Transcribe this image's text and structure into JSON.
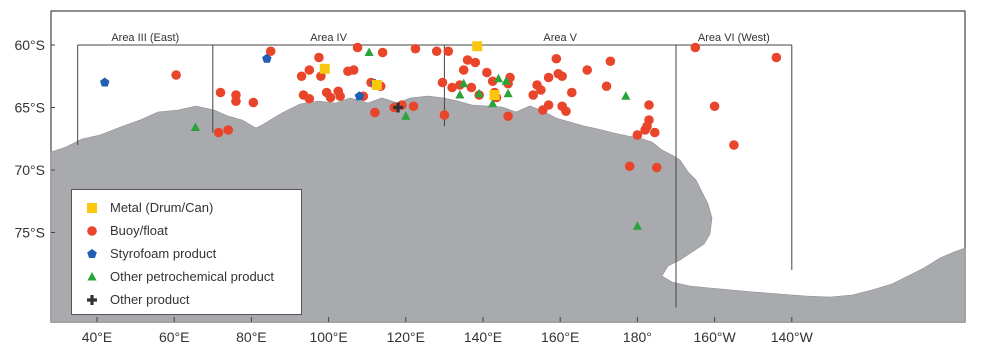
{
  "map": {
    "lat_labels": [
      "60°S",
      "65°S",
      "70°S",
      "75°S"
    ],
    "lon_labels": [
      "40°E",
      "60°E",
      "80°E",
      "100°E",
      "120°E",
      "140°E",
      "160°E",
      "180°",
      "160°W",
      "140°W"
    ],
    "areas": [
      {
        "label": "Area III (East)"
      },
      {
        "label": "Area IV"
      },
      {
        "label": "Area V"
      },
      {
        "label": "Area VI (West)"
      }
    ],
    "colors": {
      "land": "#a9aaae",
      "metal": "#f9c80e",
      "buoy": "#e8452b",
      "styrofoam": "#1f5fb4",
      "petrochemical": "#2aa33b",
      "other": "#333333"
    }
  },
  "legend": {
    "items": [
      {
        "label": "Metal (Drum/Can)",
        "symbol": "square",
        "color": "#f9c80e"
      },
      {
        "label": "Buoy/float",
        "symbol": "circle",
        "color": "#e8452b"
      },
      {
        "label": "Styrofoam product",
        "symbol": "pentagon",
        "color": "#1f5fb4"
      },
      {
        "label": "Other petrochemical product",
        "symbol": "triangle",
        "color": "#2aa33b"
      },
      {
        "label": "Other product",
        "symbol": "cross",
        "color": "#333333"
      }
    ]
  },
  "points": {
    "buoy": [
      [
        60.5,
        -62.4
      ],
      [
        71.5,
        -67.0
      ],
      [
        72,
        -63.8
      ],
      [
        74,
        -66.8
      ],
      [
        76,
        -64.0
      ],
      [
        76,
        -64.5
      ],
      [
        80.5,
        -64.6
      ],
      [
        85,
        -60.5
      ],
      [
        93,
        -62.5
      ],
      [
        93.5,
        -64.0
      ],
      [
        95,
        -62.0
      ],
      [
        95,
        -64.3
      ],
      [
        97.5,
        -61.0
      ],
      [
        98,
        -62.5
      ],
      [
        99.5,
        -63.8
      ],
      [
        100.5,
        -64.2
      ],
      [
        102.5,
        -63.7
      ],
      [
        103,
        -64.1
      ],
      [
        105,
        -62.1
      ],
      [
        106.5,
        -62.0
      ],
      [
        107.5,
        -60.2
      ],
      [
        109,
        -64.1
      ],
      [
        111,
        -63.0
      ],
      [
        112,
        -65.4
      ],
      [
        113.5,
        -63.3
      ],
      [
        114,
        -60.6
      ],
      [
        117,
        -65.0
      ],
      [
        119,
        -64.8
      ],
      [
        122.5,
        -60.3
      ],
      [
        122,
        -64.9
      ],
      [
        128,
        -60.5
      ],
      [
        129.5,
        -63.0
      ],
      [
        130,
        -65.6
      ],
      [
        131,
        -60.5
      ],
      [
        132,
        -63.4
      ],
      [
        134,
        -63.2
      ],
      [
        135,
        -62.0
      ],
      [
        136,
        -61.2
      ],
      [
        137,
        -63.4
      ],
      [
        138,
        -61.4
      ],
      [
        139,
        -64.0
      ],
      [
        141,
        -62.2
      ],
      [
        142.5,
        -62.9
      ],
      [
        143,
        -63.8
      ],
      [
        143.5,
        -64.2
      ],
      [
        146.5,
        -63.1
      ],
      [
        147,
        -62.6
      ],
      [
        146.5,
        -65.7
      ],
      [
        153,
        -64.0
      ],
      [
        154,
        -63.2
      ],
      [
        155,
        -63.6
      ],
      [
        155.5,
        -65.2
      ],
      [
        157,
        -62.6
      ],
      [
        157,
        -64.8
      ],
      [
        159,
        -61.1
      ],
      [
        159.5,
        -62.3
      ],
      [
        160.5,
        -62.5
      ],
      [
        160.5,
        -64.9
      ],
      [
        161.5,
        -65.3
      ],
      [
        163,
        -63.8
      ],
      [
        167,
        -62.0
      ],
      [
        172,
        -63.3
      ],
      [
        173,
        -61.3
      ],
      [
        178,
        -69.7
      ],
      [
        180,
        -67.2
      ],
      [
        182,
        -66.8
      ],
      [
        182.5,
        -66.5
      ],
      [
        183,
        -66.0
      ],
      [
        183,
        -64.8
      ],
      [
        184.5,
        -67.0
      ],
      [
        185,
        -69.8
      ],
      [
        195,
        -60.2
      ],
      [
        200,
        -64.9
      ],
      [
        205,
        -68.0
      ],
      [
        216,
        -61.0
      ]
    ],
    "metal": [
      [
        99,
        -61.9
      ],
      [
        112.5,
        -63.2
      ],
      [
        138.5,
        -60.1
      ],
      [
        143,
        -64.0
      ]
    ],
    "styrofoam": [
      [
        42,
        -63.0
      ],
      [
        84,
        -61.1
      ],
      [
        112,
        -63.1
      ],
      [
        108,
        -64.1
      ]
    ],
    "petrochemical": [
      [
        65.5,
        -66.6
      ],
      [
        110.5,
        -60.6
      ],
      [
        120,
        -65.7
      ],
      [
        134,
        -64.0
      ],
      [
        135,
        -63.1
      ],
      [
        139,
        -63.9
      ],
      [
        142.5,
        -64.7
      ],
      [
        144,
        -62.7
      ],
      [
        146,
        -62.9
      ],
      [
        146.5,
        -63.9
      ],
      [
        177,
        -64.1
      ],
      [
        180,
        -74.5
      ]
    ],
    "other": [
      [
        118,
        -65.0
      ]
    ]
  }
}
